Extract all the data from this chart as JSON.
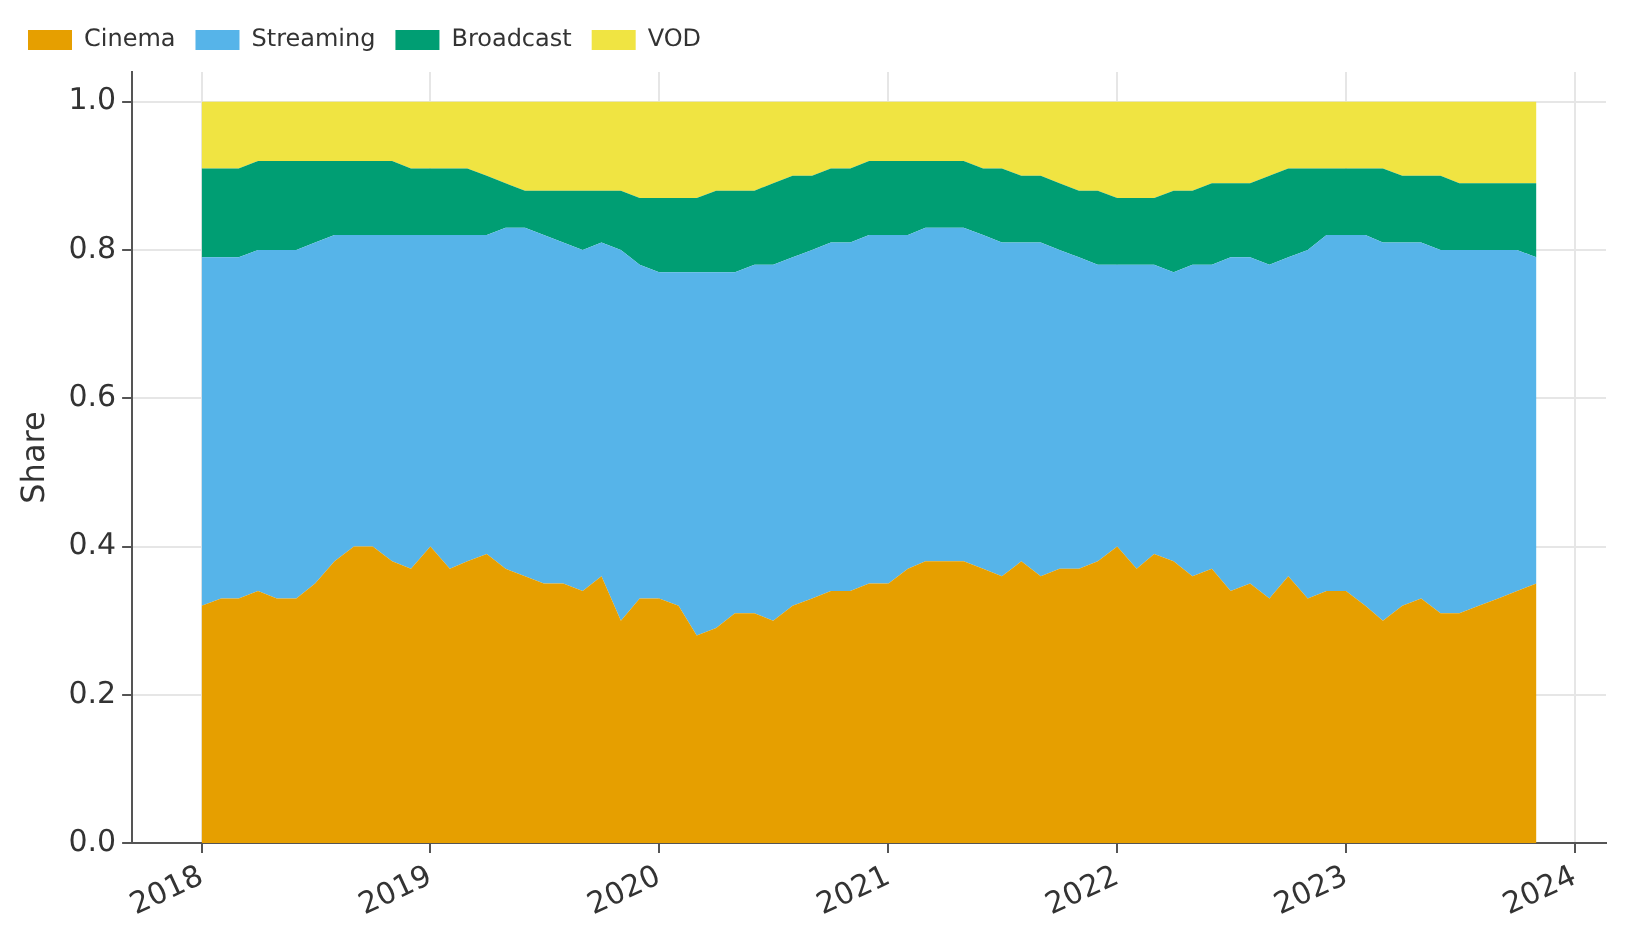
{
  "chart_data": {
    "type": "area",
    "stacked": true,
    "ylabel": "Share",
    "legend": "top left",
    "grid": true,
    "marker": "none",
    "x": [
      "2018-01",
      "2018-02",
      "2018-03",
      "2018-04",
      "2018-05",
      "2018-06",
      "2018-07",
      "2018-08",
      "2018-09",
      "2018-10",
      "2018-11",
      "2018-12",
      "2019-01",
      "2019-02",
      "2019-03",
      "2019-04",
      "2019-05",
      "2019-06",
      "2019-07",
      "2019-08",
      "2019-09",
      "2019-10",
      "2019-11",
      "2019-12",
      "2020-01",
      "2020-02",
      "2020-03",
      "2020-04",
      "2020-05",
      "2020-06",
      "2020-07",
      "2020-08",
      "2020-09",
      "2020-10",
      "2020-11",
      "2020-12",
      "2021-01",
      "2021-02",
      "2021-03",
      "2021-04",
      "2021-05",
      "2021-06",
      "2021-07",
      "2021-08",
      "2021-09",
      "2021-10",
      "2021-11",
      "2021-12",
      "2022-01",
      "2022-02",
      "2022-03",
      "2022-04",
      "2022-05",
      "2022-06",
      "2022-07",
      "2022-08",
      "2022-09",
      "2022-10",
      "2022-11",
      "2022-12",
      "2023-01",
      "2023-02",
      "2023-03",
      "2023-04",
      "2023-05",
      "2023-06",
      "2023-07",
      "2023-08",
      "2023-09",
      "2023-10",
      "2023-11"
    ],
    "xlim": [
      "2017-09-12",
      "2024-02-20"
    ],
    "xticks": [
      "2018",
      "2019",
      "2020",
      "2021",
      "2022",
      "2023",
      "2024"
    ],
    "ylim": [
      0,
      1.04
    ],
    "yticks": [
      {
        "value": 0,
        "label": "0.0"
      },
      {
        "value": 0.2,
        "label": "0.2"
      },
      {
        "value": 0.4,
        "label": "0.4"
      },
      {
        "value": 0.6,
        "label": "0.6"
      },
      {
        "value": 0.8,
        "label": "0.8"
      },
      {
        "value": 1,
        "label": "1.0"
      }
    ],
    "series": [
      {
        "name": "Cinema",
        "color": "#e69f00",
        "values": [
          0.32,
          0.33,
          0.33,
          0.34,
          0.33,
          0.33,
          0.35,
          0.38,
          0.4,
          0.4,
          0.38,
          0.37,
          0.4,
          0.37,
          0.38,
          0.39,
          0.37,
          0.36,
          0.35,
          0.35,
          0.34,
          0.36,
          0.3,
          0.33,
          0.33,
          0.32,
          0.28,
          0.29,
          0.31,
          0.31,
          0.3,
          0.32,
          0.33,
          0.34,
          0.34,
          0.35,
          0.35,
          0.37,
          0.38,
          0.38,
          0.38,
          0.37,
          0.36,
          0.38,
          0.36,
          0.37,
          0.37,
          0.38,
          0.4,
          0.37,
          0.39,
          0.38,
          0.36,
          0.37,
          0.34,
          0.35,
          0.33,
          0.36,
          0.33,
          0.34,
          0.34,
          0.32,
          0.3,
          0.32,
          0.33,
          0.31,
          0.31,
          0.32,
          0.33,
          0.34,
          0.35
        ]
      },
      {
        "name": "Streaming",
        "color": "#56b4e9",
        "values": [
          0.47,
          0.46,
          0.46,
          0.46,
          0.47,
          0.47,
          0.46,
          0.44,
          0.42,
          0.42,
          0.44,
          0.45,
          0.42,
          0.45,
          0.44,
          0.43,
          0.46,
          0.47,
          0.47,
          0.46,
          0.46,
          0.45,
          0.5,
          0.45,
          0.44,
          0.45,
          0.49,
          0.48,
          0.46,
          0.47,
          0.48,
          0.47,
          0.47,
          0.47,
          0.47,
          0.47,
          0.47,
          0.45,
          0.45,
          0.45,
          0.45,
          0.45,
          0.45,
          0.43,
          0.45,
          0.43,
          0.42,
          0.4,
          0.38,
          0.41,
          0.39,
          0.39,
          0.42,
          0.41,
          0.45,
          0.44,
          0.45,
          0.43,
          0.47,
          0.48,
          0.48,
          0.5,
          0.51,
          0.49,
          0.48,
          0.49,
          0.49,
          0.48,
          0.47,
          0.46,
          0.44
        ]
      },
      {
        "name": "Broadcast",
        "color": "#009e73",
        "values": [
          0.12,
          0.12,
          0.12,
          0.12,
          0.12,
          0.12,
          0.11,
          0.1,
          0.1,
          0.1,
          0.1,
          0.09,
          0.09,
          0.09,
          0.09,
          0.08,
          0.06,
          0.05,
          0.06,
          0.07,
          0.08,
          0.07,
          0.08,
          0.09,
          0.1,
          0.1,
          0.1,
          0.11,
          0.11,
          0.1,
          0.11,
          0.11,
          0.1,
          0.1,
          0.1,
          0.1,
          0.1,
          0.1,
          0.09,
          0.09,
          0.09,
          0.09,
          0.1,
          0.09,
          0.09,
          0.09,
          0.09,
          0.1,
          0.09,
          0.09,
          0.09,
          0.11,
          0.1,
          0.11,
          0.1,
          0.1,
          0.12,
          0.12,
          0.11,
          0.09,
          0.09,
          0.09,
          0.1,
          0.09,
          0.09,
          0.1,
          0.09,
          0.09,
          0.09,
          0.09,
          0.1
        ]
      },
      {
        "name": "VOD",
        "color": "#f0e442",
        "values": [
          0.09,
          0.09,
          0.09,
          0.08,
          0.08,
          0.08,
          0.08,
          0.08,
          0.08,
          0.08,
          0.08,
          0.09,
          0.09,
          0.09,
          0.09,
          0.1,
          0.11,
          0.12,
          0.12,
          0.12,
          0.12,
          0.12,
          0.12,
          0.13,
          0.13,
          0.13,
          0.13,
          0.12,
          0.12,
          0.12,
          0.11,
          0.1,
          0.1,
          0.09,
          0.09,
          0.08,
          0.08,
          0.08,
          0.08,
          0.08,
          0.08,
          0.09,
          0.09,
          0.1,
          0.1,
          0.11,
          0.12,
          0.12,
          0.13,
          0.13,
          0.13,
          0.12,
          0.12,
          0.11,
          0.11,
          0.11,
          0.1,
          0.09,
          0.09,
          0.09,
          0.09,
          0.09,
          0.09,
          0.1,
          0.1,
          0.1,
          0.11,
          0.11,
          0.11,
          0.11,
          0.11
        ]
      }
    ]
  }
}
